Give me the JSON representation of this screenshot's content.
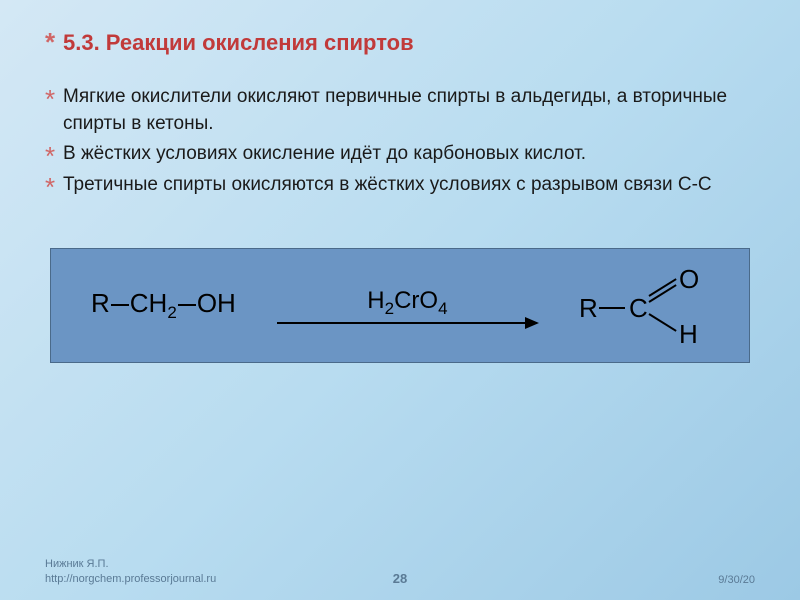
{
  "title": "5.3. Реакции окисления спиртов",
  "bullets": [
    "Мягкие окислители окисляют первичные спирты в альдегиды, а вторичные спирты в кетоны.",
    "В жёстких условиях окисление идёт до карбоновых кислот.",
    "Третичные спирты окисляются в жёстких условиях с разрывом связи С-С"
  ],
  "reaction": {
    "reactant_r": "R",
    "reactant_ch2": "CH",
    "reactant_ch2_sub": "2",
    "reactant_oh": "OH",
    "reagent_h": "H",
    "reagent_2": "2",
    "reagent_cro": "CrO",
    "reagent_4": "4",
    "product_r": "R",
    "product_c": "C",
    "product_o": "O",
    "product_h": "H",
    "box_bg": "#6b95c4"
  },
  "footer": {
    "author": "Нижник Я.П.",
    "url": "http://norgchem.professorjournal.ru",
    "page": "28",
    "date": "9/30/20"
  },
  "styling": {
    "bg_gradient_start": "#d4e8f5",
    "bg_gradient_mid": "#b8dcf0",
    "bg_gradient_end": "#9cc9e5",
    "title_color": "#c13a3a",
    "bullet_marker_color": "#d06666",
    "text_color": "#1a1a1a",
    "footer_color": "#5a7a95",
    "title_fontsize": 22,
    "bullet_fontsize": 19,
    "formula_fontsize": 26
  }
}
